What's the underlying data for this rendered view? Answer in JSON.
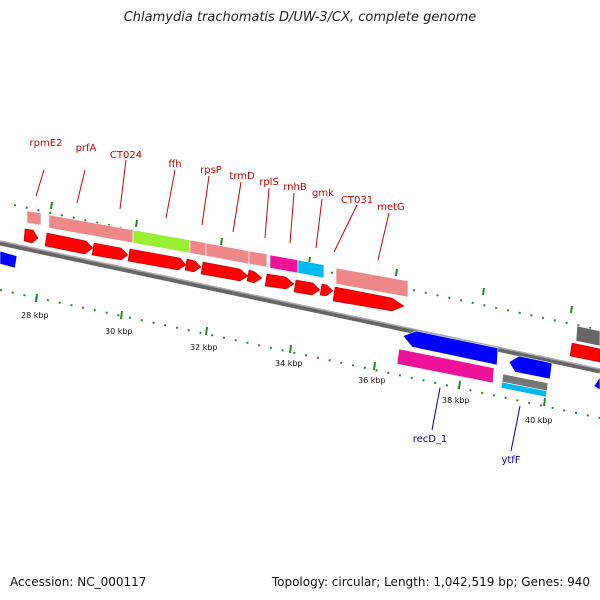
{
  "title": "Chlamydia trachomatis D/UW-3/CX, complete genome",
  "footer": {
    "accession": "Accession: NC_000117",
    "topology": "Topology: circular; Length: 1,042,519 bp; Genes: 940"
  },
  "colors": {
    "label_forward": "#cc0000",
    "label_reverse": "#0000aa",
    "cds_forward": "#ff0000",
    "cds_reverse": "#0000ff",
    "pink": "#ee8888",
    "green": "#99ee33",
    "magenta": "#ee1199",
    "cyan": "#00bbee",
    "gray": "#777777",
    "tick": "#228822"
  },
  "axis": {
    "ticks": [
      "28 kbp",
      "30 kbp",
      "32 kbp",
      "34 kbp",
      "36 kbp",
      "38 kbp",
      "40 kbp"
    ]
  },
  "gene_labels_forward": [
    "rpmE2",
    "prfA",
    "CT024",
    "ffh",
    "rpsP",
    "trmD",
    "rplS",
    "rnhB",
    "gmk",
    "CT031",
    "metG"
  ],
  "gene_labels_reverse": [
    "recD_1",
    "ytfF"
  ]
}
